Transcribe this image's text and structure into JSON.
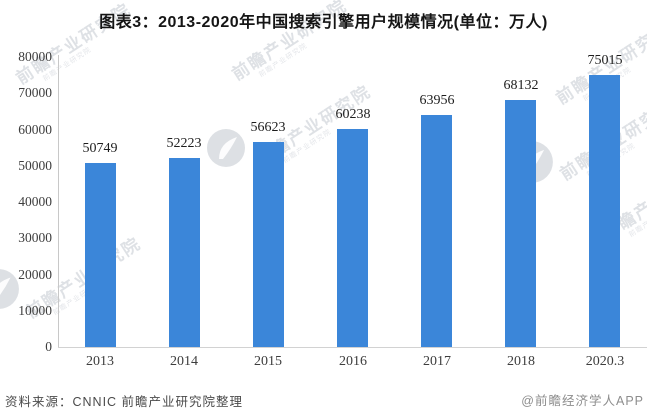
{
  "title": "图表3：2013-2020年中国搜索引擎用户规模情况(单位：万人)",
  "chart_data": {
    "type": "bar",
    "title": "图表3：2013-2020年中国搜索引擎用户规模情况(单位：万人)",
    "categories": [
      "2013",
      "2014",
      "2015",
      "2016",
      "2017",
      "2018",
      "2020.3"
    ],
    "values": [
      50749,
      52223,
      56623,
      60238,
      63956,
      68132,
      75015
    ],
    "xlabel": "",
    "ylabel": "",
    "unit": "万人",
    "ylim": [
      0,
      80000
    ],
    "yticks": [
      0,
      10000,
      20000,
      30000,
      40000,
      50000,
      60000,
      70000,
      80000
    ],
    "grid": false,
    "legend_position": "none",
    "bar_color": "#3B86D9"
  },
  "footer": {
    "source": "资料来源：CNNIC 前瞻产业研究院整理",
    "credit": "@前瞻经济学人APP"
  },
  "watermark": {
    "text": "前瞻产业研究院",
    "logo_name": "qianzhan-fan-logo",
    "color": "rgba(145,155,170,0.30)"
  }
}
